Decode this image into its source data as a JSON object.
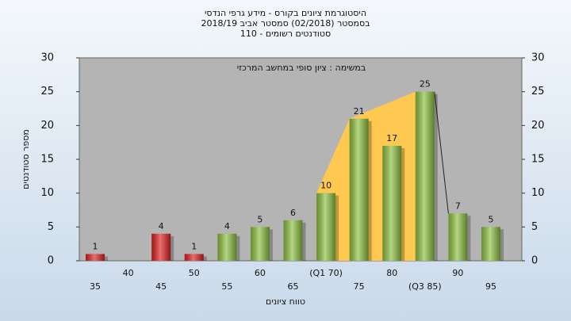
{
  "chart_data": {
    "type": "bar",
    "title": [
      "היסטוגרמת ציונים בקורס - מידע גרפי הנדסי",
      "בסמסטר  (02/2018)  סמסטר אביב 2018/19",
      "סטודנטים רשומים - 110"
    ],
    "annotation": "במשימה : ציון סופי במחשב המרכזי",
    "y_label": "מספר סטודנטים",
    "x_label": "טווח ציונים",
    "categories": [
      "35",
      "40",
      "45",
      "50",
      "55",
      "60",
      "65",
      "(Q1 70)",
      "75",
      "80",
      "(Q3 85)",
      "90",
      "95"
    ],
    "values": [
      1,
      null,
      4,
      1,
      4,
      5,
      6,
      10,
      21,
      17,
      25,
      7,
      5
    ],
    "colors": [
      "#e02020",
      null,
      "#e02020",
      "#e02020",
      "#8cc040",
      "#8cc040",
      "#8cc040",
      "#8cc040",
      "#8cc040",
      "#8cc040",
      "#8cc040",
      "#8cc040",
      "#8cc040"
    ],
    "area_color": "#ffc850",
    "ylim": [
      0,
      30
    ],
    "yticks": [
      0,
      5,
      10,
      15,
      20,
      25,
      30
    ],
    "y2lim": [
      0,
      30
    ],
    "y2ticks": [
      0,
      5,
      10,
      15,
      20,
      25,
      30
    ]
  }
}
